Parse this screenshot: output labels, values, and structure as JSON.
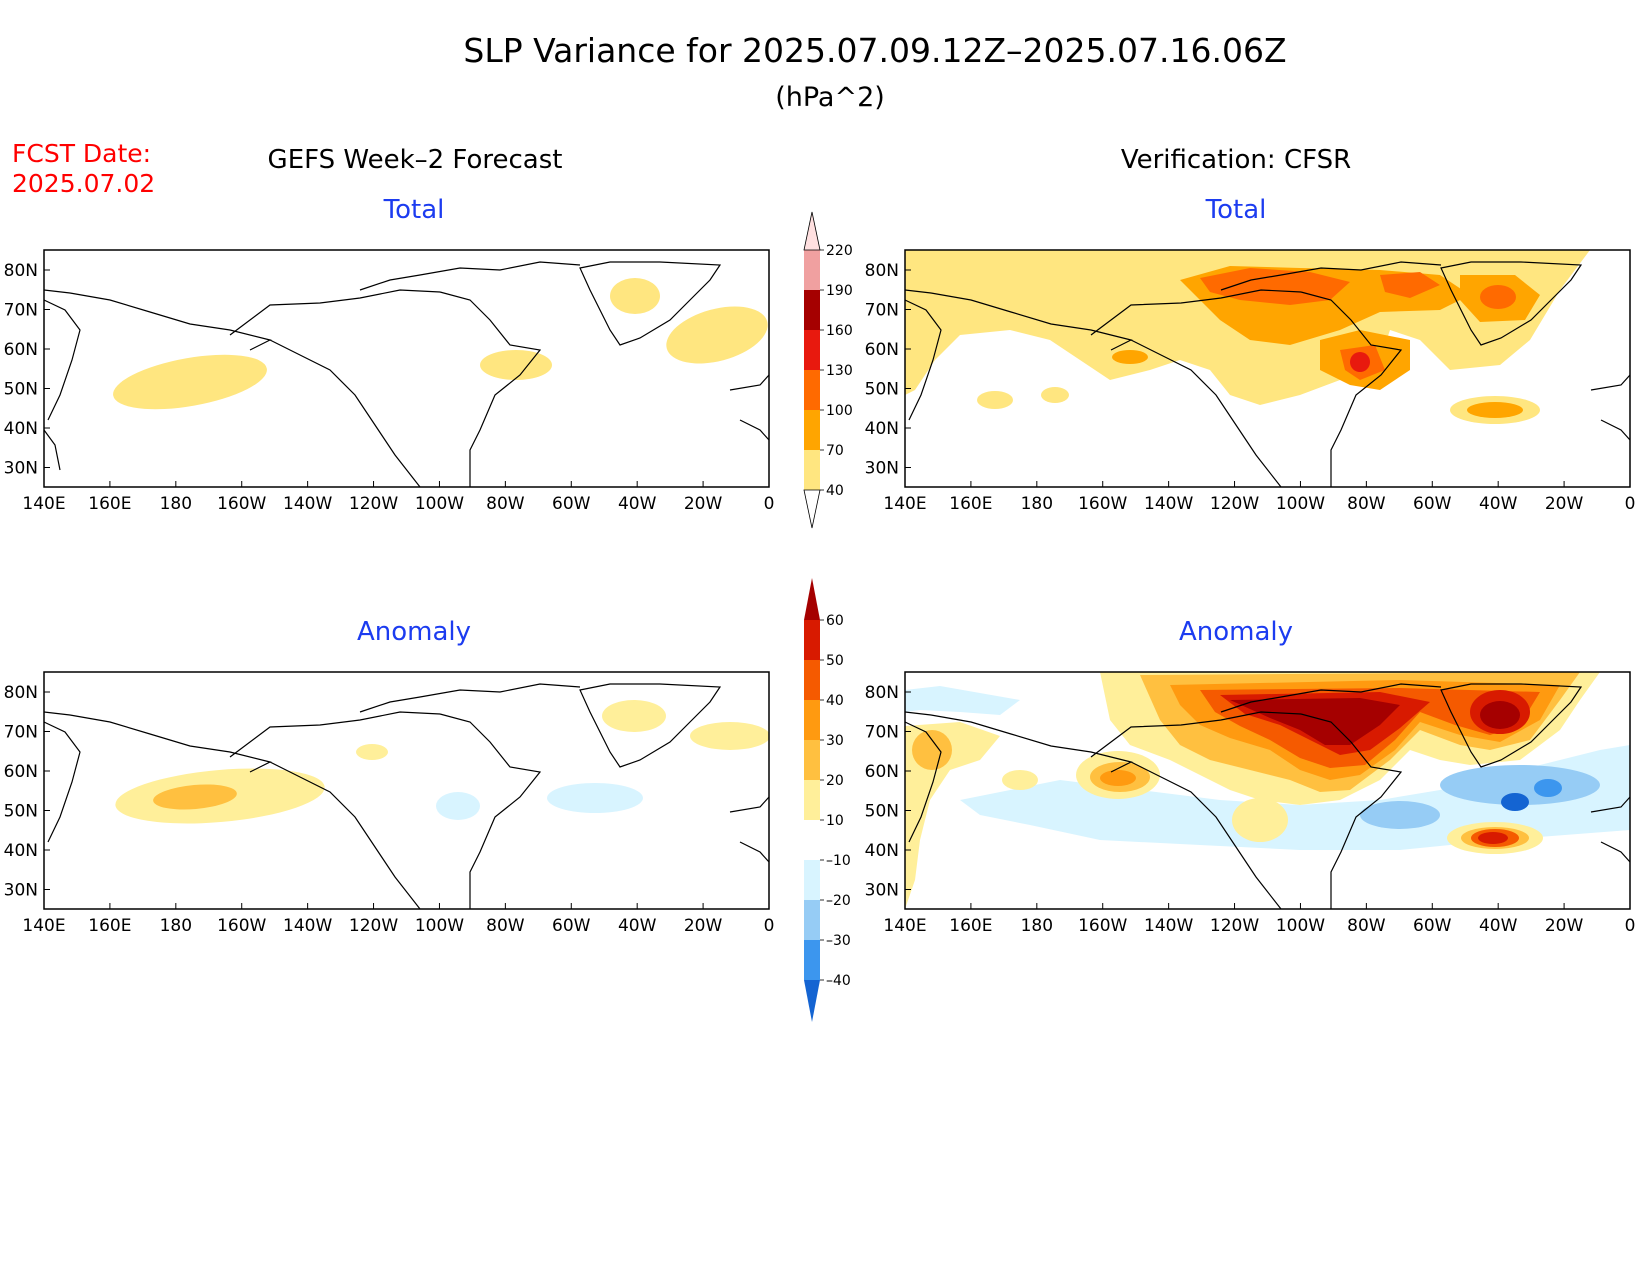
{
  "title": "SLP Variance for 2025.07.09.12Z–2025.07.16.06Z",
  "units": "(hPa^2)",
  "fcst_date_label": "FCST Date:",
  "fcst_date_value": "2025.07.02",
  "columns": {
    "left": "GEFS Week–2 Forecast",
    "right": "Verification: CFSR"
  },
  "panels": [
    {
      "id": "forecast-total",
      "title": "Total"
    },
    {
      "id": "verification-total",
      "title": "Total"
    },
    {
      "id": "forecast-anomaly",
      "title": "Anomaly"
    },
    {
      "id": "verification-anomaly",
      "title": "Anomaly"
    }
  ],
  "lon_ticks": [
    "140E",
    "160E",
    "180",
    "160W",
    "140W",
    "120W",
    "100W",
    "80W",
    "60W",
    "40W",
    "20W",
    "0"
  ],
  "lat_ticks": [
    "80N",
    "70N",
    "60N",
    "50N",
    "40N",
    "30N"
  ],
  "colorbar_total": {
    "levels": [
      "40",
      "70",
      "100",
      "130",
      "160",
      "190",
      "220"
    ],
    "colors": [
      "#ffe680",
      "#ffa500",
      "#ff6a00",
      "#e8190e",
      "#a50000",
      "#f0a0a0",
      "#ffe0e0"
    ]
  },
  "colorbar_anomaly": {
    "levels": [
      "60",
      "50",
      "40",
      "30",
      "20",
      "10",
      "–10",
      "–20",
      "–30",
      "–40"
    ],
    "colors": [
      "#a50000",
      "#d81a00",
      "#f55a00",
      "#ff9a10",
      "#ffc040",
      "#ffef9a",
      "#ffffff",
      "#d8f4ff",
      "#96ccf5",
      "#3c96ee",
      "#1464d2"
    ]
  },
  "colors": {
    "title": "#000000",
    "fcst_date": "#ff0000",
    "panel_title": "#1c3cf0",
    "coast": "#000000"
  }
}
